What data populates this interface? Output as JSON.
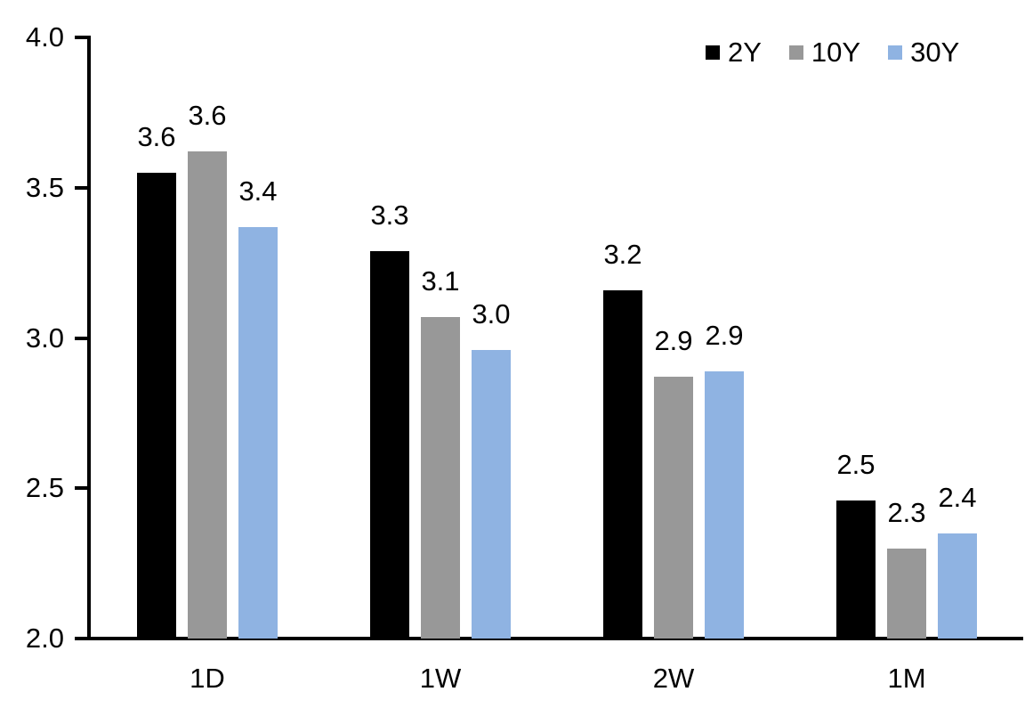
{
  "chart_data": {
    "type": "bar",
    "title": "",
    "categories": [
      "1D",
      "1W",
      "2W",
      "1M"
    ],
    "series": [
      {
        "name": "2Y",
        "color": "#000000",
        "values": [
          3.55,
          3.29,
          3.16,
          2.46
        ],
        "labels": [
          "3.6",
          "3.3",
          "3.2",
          "2.5"
        ]
      },
      {
        "name": "10Y",
        "color": "#989898",
        "values": [
          3.62,
          3.07,
          2.87,
          2.3
        ],
        "labels": [
          "3.6",
          "3.1",
          "2.9",
          "2.3"
        ]
      },
      {
        "name": "30Y",
        "color": "#8fb3e2",
        "values": [
          3.37,
          2.96,
          2.89,
          2.35
        ],
        "labels": [
          "3.4",
          "3.0",
          "2.9",
          "2.4"
        ]
      }
    ],
    "y_axis": {
      "min": 2.0,
      "max": 4.0,
      "tick_values": [
        4.0,
        3.5,
        3.0,
        2.5,
        2.0
      ],
      "tick_labels": [
        "4.0",
        "3.5",
        "3.0",
        "2.5",
        "2.0"
      ]
    },
    "x_axis": {
      "tick_labels": [
        "1D",
        "1W",
        "2W",
        "1M"
      ]
    },
    "legend": {
      "position": "top-right",
      "entries": [
        "2Y",
        "10Y",
        "30Y"
      ]
    },
    "grid": false,
    "data_labels_shown": true,
    "axis_color": "#000000",
    "text_color": "#000000",
    "background_color": "#ffffff"
  }
}
